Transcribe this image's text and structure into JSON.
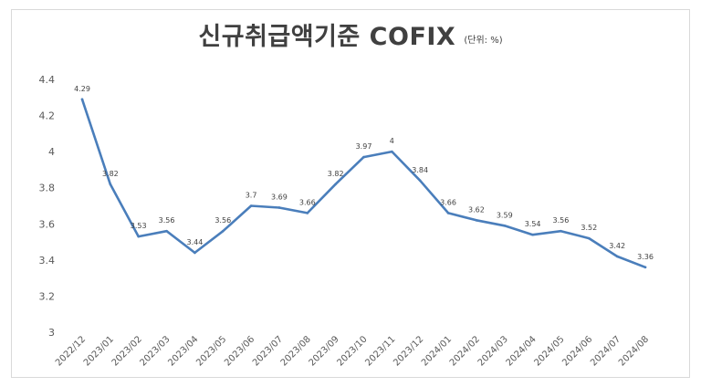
{
  "chart_data": {
    "type": "line",
    "title": "신규취급액기준 COFIX",
    "subtitle": "(단위: %)",
    "xlabel": "",
    "ylabel": "",
    "ylim": [
      3,
      4.4
    ],
    "yticks": [
      "3",
      "3.2",
      "3.4",
      "3.6",
      "3.8",
      "4",
      "4.2",
      "4.4"
    ],
    "grid": false,
    "legend": "none",
    "line_color": "#4a7ebb",
    "categories": [
      "2022/12",
      "2023/01",
      "2023/02",
      "2023/03",
      "2023/04",
      "2023/05",
      "2023/06",
      "2023/07",
      "2023/08",
      "2023/09",
      "2023/10",
      "2023/11",
      "2023/12",
      "2024/01",
      "2024/02",
      "2024/03",
      "2024/04",
      "2024/05",
      "2024/06",
      "2024/07",
      "2024/08"
    ],
    "values": [
      4.29,
      3.82,
      3.53,
      3.56,
      3.44,
      3.56,
      3.7,
      3.69,
      3.66,
      3.82,
      3.97,
      4,
      3.84,
      3.66,
      3.62,
      3.59,
      3.54,
      3.56,
      3.52,
      3.42,
      3.36
    ],
    "data_labels": [
      "4.29",
      "3.82",
      "3.53",
      "3.56",
      "3.44",
      "3.56",
      "3.7",
      "3.69",
      "3.66",
      "3.82",
      "3.97",
      "4",
      "3.84",
      "3.66",
      "3.62",
      "3.59",
      "3.54",
      "3.56",
      "3.52",
      "3.42",
      "3.36"
    ]
  }
}
